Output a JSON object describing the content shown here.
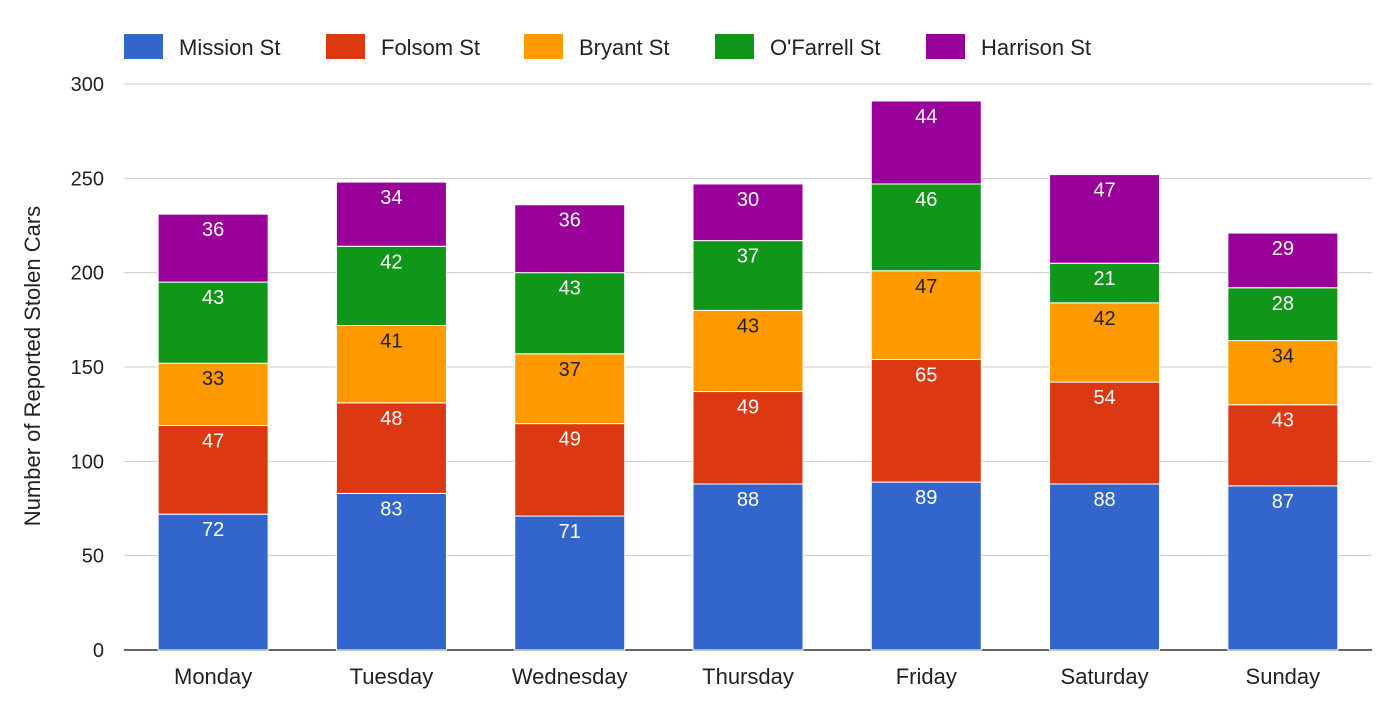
{
  "chart_data": {
    "type": "bar",
    "stacked": true,
    "title": "",
    "xlabel": "",
    "ylabel": "Number of Reported Stolen Cars",
    "ylim": [
      0,
      300
    ],
    "yticks": [
      0,
      50,
      100,
      150,
      200,
      250,
      300
    ],
    "grid": true,
    "legend_position": "top",
    "categories": [
      "Monday",
      "Tuesday",
      "Wednesday",
      "Thursday",
      "Friday",
      "Saturday",
      "Sunday"
    ],
    "series": [
      {
        "name": "Mission St",
        "color": "#3366cc",
        "values": [
          72,
          83,
          71,
          88,
          89,
          88,
          87
        ]
      },
      {
        "name": "Folsom St",
        "color": "#dc3912",
        "values": [
          47,
          48,
          49,
          49,
          65,
          54,
          43
        ]
      },
      {
        "name": "Bryant St",
        "color": "#ff9900",
        "values": [
          33,
          41,
          37,
          43,
          47,
          42,
          34
        ]
      },
      {
        "name": "O'Farrell St",
        "color": "#109618",
        "values": [
          43,
          42,
          43,
          37,
          46,
          21,
          28
        ]
      },
      {
        "name": "Harrison St",
        "color": "#990099",
        "values": [
          36,
          34,
          36,
          30,
          44,
          47,
          29
        ]
      }
    ]
  }
}
